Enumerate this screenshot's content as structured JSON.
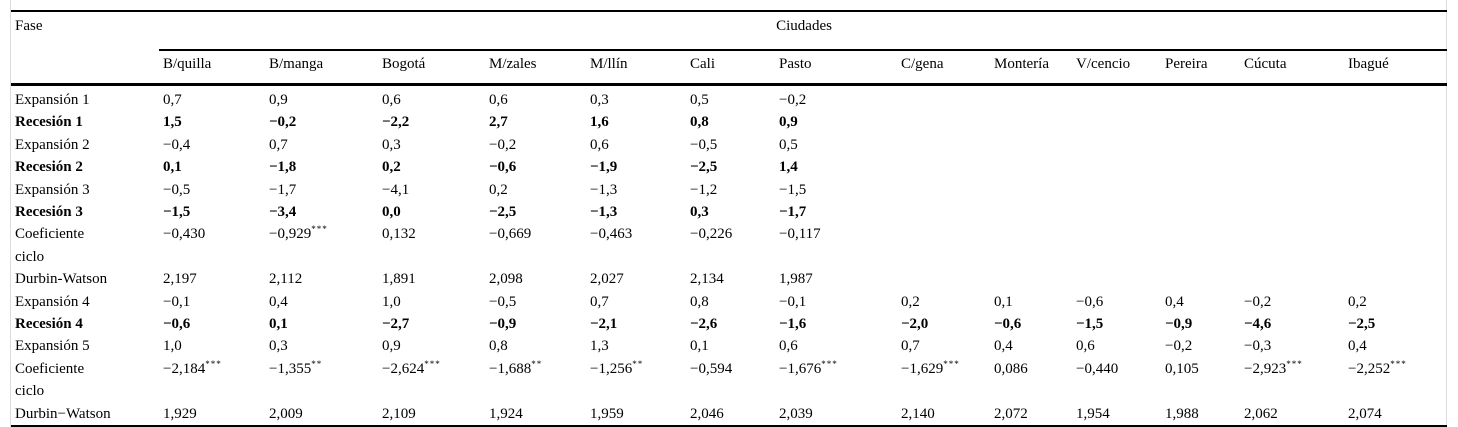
{
  "table": {
    "phase_header": "Fase",
    "group_header": "Ciudades",
    "columns": [
      "B/quilla",
      "B/manga",
      "Bogotá",
      "M/zales",
      "M/llín",
      "Cali",
      "Pasto",
      "C/gena",
      "Montería",
      "V/cencio",
      "Pereira",
      "Cúcuta",
      "Ibagué"
    ],
    "rows": [
      {
        "label": "Expansión 1",
        "bold": false,
        "values": [
          "0,7",
          "0,9",
          "0,6",
          "0,6",
          "0,3",
          "0,5",
          "−0,2",
          "",
          "",
          "",
          "",
          "",
          ""
        ]
      },
      {
        "label": "Recesión 1",
        "bold": true,
        "values": [
          "1,5",
          "−0,2",
          "−2,2",
          "2,7",
          "1,6",
          "0,8",
          "0,9",
          "",
          "",
          "",
          "",
          "",
          ""
        ]
      },
      {
        "label": "Expansión 2",
        "bold": false,
        "values": [
          "−0,4",
          "0,7",
          "0,3",
          "−0,2",
          "0,6",
          "−0,5",
          "0,5",
          "",
          "",
          "",
          "",
          "",
          ""
        ]
      },
      {
        "label": "Recesión 2",
        "bold": true,
        "values": [
          "0,1",
          "−1,8",
          "0,2",
          "−0,6",
          "−1,9",
          "−2,5",
          "1,4",
          "",
          "",
          "",
          "",
          "",
          ""
        ]
      },
      {
        "label": "Expansión 3",
        "bold": false,
        "values": [
          "−0,5",
          "−1,7",
          "−4,1",
          "0,2",
          "−1,3",
          "−1,2",
          "−1,5",
          "",
          "",
          "",
          "",
          "",
          ""
        ]
      },
      {
        "label": "Recesión 3",
        "bold": true,
        "values": [
          "−1,5",
          "−3,4",
          "0,0",
          "−2,5",
          "−1,3",
          "0,3",
          "−1,7",
          "",
          "",
          "",
          "",
          "",
          ""
        ]
      },
      {
        "label": "Coeficiente\nciclo",
        "bold": false,
        "values": [
          "−0,430",
          "−0,929***",
          "0,132",
          "−0,669",
          "−0,463",
          "−0,226",
          "−0,117",
          "",
          "",
          "",
          "",
          "",
          ""
        ]
      },
      {
        "label": "Durbin-Watson",
        "bold": false,
        "values": [
          "2,197",
          "2,112",
          "1,891",
          "2,098",
          "2,027",
          "2,134",
          "1,987",
          "",
          "",
          "",
          "",
          "",
          ""
        ]
      },
      {
        "label": "Expansión 4",
        "bold": false,
        "values": [
          "−0,1",
          "0,4",
          "1,0",
          "−0,5",
          "0,7",
          "0,8",
          "−0,1",
          "0,2",
          "0,1",
          "−0,6",
          "0,4",
          "−0,2",
          "0,2"
        ]
      },
      {
        "label": "Recesión 4",
        "bold": true,
        "values": [
          "−0,6",
          "0,1",
          "−2,7",
          "−0,9",
          "−2,1",
          "−2,6",
          "−1,6",
          "−2,0",
          "−0,6",
          "−1,5",
          "−0,9",
          "−4,6",
          "−2,5"
        ]
      },
      {
        "label": "Expansión 5",
        "bold": false,
        "values": [
          "1,0",
          "0,3",
          "0,9",
          "0,8",
          "1,3",
          "0,1",
          "0,6",
          "0,7",
          "0,4",
          "0,6",
          "−0,2",
          "−0,3",
          "0,4"
        ]
      },
      {
        "label": "Coeficiente\nciclo",
        "bold": false,
        "values": [
          "−2,184***",
          "−1,355**",
          "−2,624***",
          "−1,688**",
          "−1,256**",
          "−0,594",
          "−1,676***",
          "−1,629***",
          "0,086",
          "−0,440",
          "0,105",
          "−2,923***",
          "−2,252***"
        ]
      },
      {
        "label": "Durbin−Watson",
        "bold": false,
        "values": [
          "1,929",
          "2,009",
          "2,109",
          "1,924",
          "1,959",
          "2,046",
          "2,039",
          "2,140",
          "2,072",
          "1,954",
          "1,988",
          "2,062",
          "2,074"
        ]
      }
    ]
  }
}
